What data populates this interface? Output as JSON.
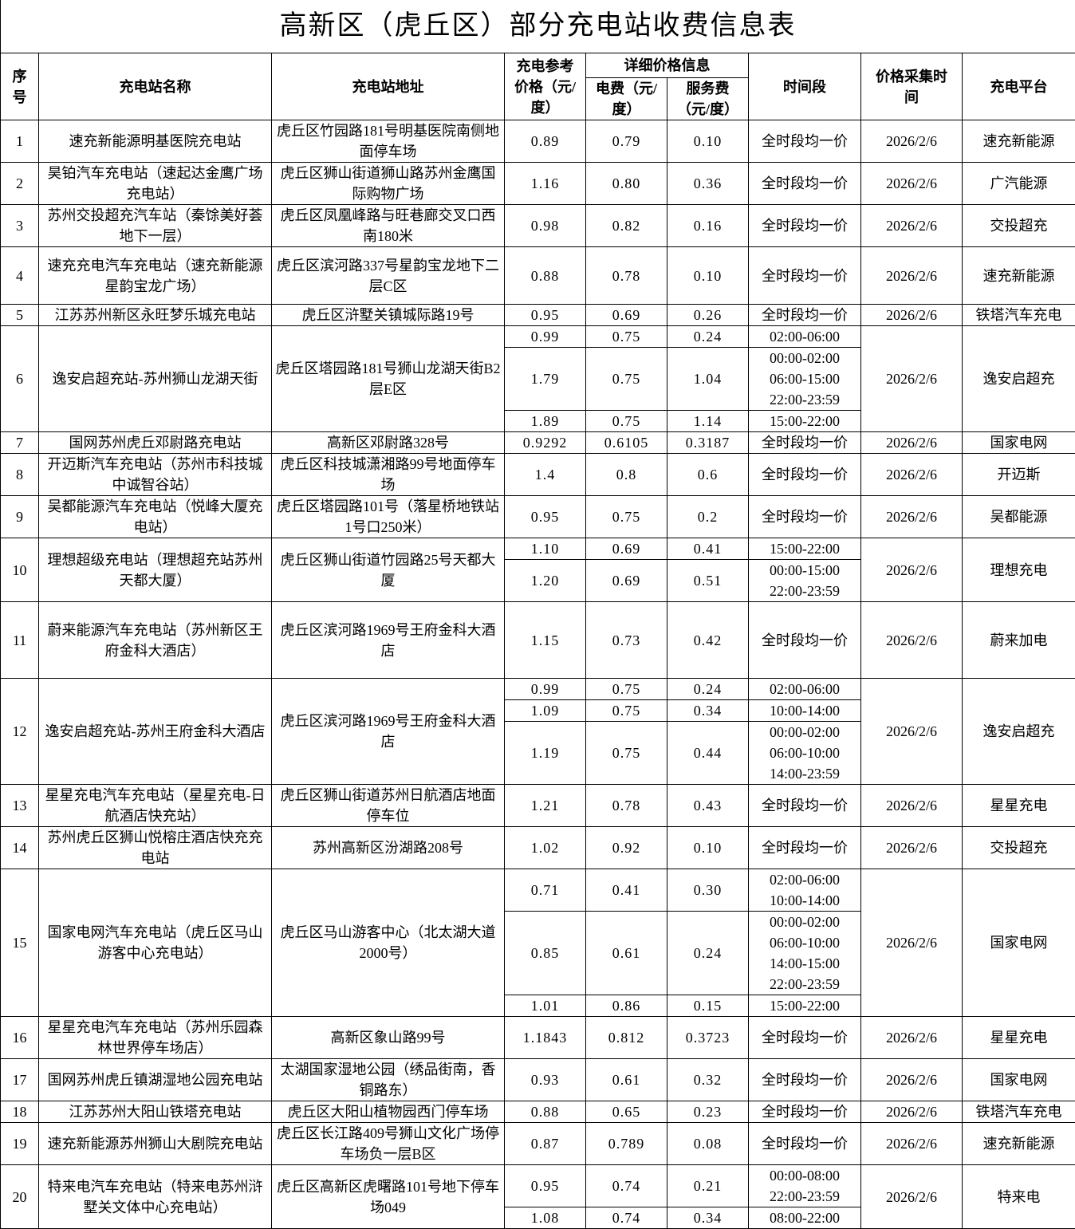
{
  "title": "高新区（虎丘区）部分充电站收费信息表",
  "headers": {
    "seq": "序\n号",
    "name": "充电站名称",
    "address": "充电站地址",
    "ref_price": "充电参考\n价格（元/\n度）",
    "detail": "详细价格信息",
    "electricity": "电费（元/\n度）",
    "service": "服务费\n（元/度）",
    "period": "时间段",
    "collected": "价格采集时\n间",
    "platform": "充电平台"
  },
  "rows": [
    {
      "seq": "1",
      "name": "速充新能源明基医院充电站",
      "address": "虎丘区竹园路181号明基医院南侧地面停车场",
      "date": "2026/2/6",
      "platform": "速充新能源",
      "prices": [
        [
          "0.89",
          "0.79",
          "0.10",
          "全时段均一价"
        ]
      ]
    },
    {
      "seq": "2",
      "name": "昊铂汽车充电站（速起达金鹰广场充电站）",
      "address": "虎丘区狮山街道狮山路苏州金鹰国际购物广场",
      "date": "2026/2/6",
      "platform": "广汽能源",
      "prices": [
        [
          "1.16",
          "0.80",
          "0.36",
          "全时段均一价"
        ]
      ]
    },
    {
      "seq": "3",
      "name": "苏州交投超充汽车站（秦馀美好荟地下一层）",
      "address": "虎丘区凤凰峰路与旺巷廊交叉口西南180米",
      "date": "2026/2/6",
      "platform": "交投超充",
      "prices": [
        [
          "0.98",
          "0.82",
          "0.16",
          "全时段均一价"
        ]
      ]
    },
    {
      "seq": "4",
      "name": "速充充电汽车充电站（速充新能源星韵宝龙广场）",
      "address": "虎丘区滨河路337号星韵宝龙地下二层C区",
      "date": "2026/2/6",
      "platform": "速充新能源",
      "prices": [
        [
          "0.88",
          "0.78",
          "0.10",
          "全时段均一价"
        ]
      ]
    },
    {
      "seq": "5",
      "name": "江苏苏州新区永旺梦乐城充电站",
      "address": "虎丘区浒墅关镇城际路19号",
      "date": "2026/2/6",
      "platform": "铁塔汽车充电",
      "prices": [
        [
          "0.95",
          "0.69",
          "0.26",
          "全时段均一价"
        ]
      ]
    },
    {
      "seq": "6",
      "name": "逸安启超充站-苏州狮山龙湖天街",
      "address": "虎丘区塔园路181号狮山龙湖天街B2层E区",
      "date": "2026/2/6",
      "platform": "逸安启超充",
      "prices": [
        [
          "0.99",
          "0.75",
          "0.24",
          "02:00-06:00"
        ],
        [
          "1.79",
          "0.75",
          "1.04",
          "00:00-02:00\n06:00-15:00\n22:00-23:59"
        ],
        [
          "1.89",
          "0.75",
          "1.14",
          "15:00-22:00"
        ]
      ]
    },
    {
      "seq": "7",
      "name": "国网苏州虎丘邓尉路充电站",
      "address": "高新区邓尉路328号",
      "date": "2026/2/6",
      "platform": "国家电网",
      "prices": [
        [
          "0.9292",
          "0.6105",
          "0.3187",
          "全时段均一价"
        ]
      ]
    },
    {
      "seq": "8",
      "name": "开迈斯汽车充电站（苏州市科技城中诚智谷站）",
      "address": "虎丘区科技城潇湘路99号地面停车场",
      "date": "2026/2/6",
      "platform": "开迈斯",
      "prices": [
        [
          "1.4",
          "0.8",
          "0.6",
          "全时段均一价"
        ]
      ]
    },
    {
      "seq": "9",
      "name": "吴都能源汽车充电站（悦峰大厦充电站）",
      "address": "虎丘区塔园路101号（落星桥地铁站1号口250米）",
      "date": "2026/2/6",
      "platform": "吴都能源",
      "prices": [
        [
          "0.95",
          "0.75",
          "0.2",
          "全时段均一价"
        ]
      ]
    },
    {
      "seq": "10",
      "name": "理想超级充电站（理想超充站苏州天都大厦）",
      "address": "虎丘区狮山街道竹园路25号天都大厦",
      "date": "2026/2/6",
      "platform": "理想充电",
      "prices": [
        [
          "1.10",
          "0.69",
          "0.41",
          "15:00-22:00"
        ],
        [
          "1.20",
          "0.69",
          "0.51",
          "00:00-15:00\n22:00-23:59"
        ]
      ]
    },
    {
      "seq": "11",
      "name": "蔚来能源汽车充电站（苏州新区王府金科大酒店）",
      "address": "虎丘区滨河路1969号王府金科大酒店",
      "date": "2026/2/6",
      "platform": "蔚来加电",
      "prices": [
        [
          "1.15",
          "0.73",
          "0.42",
          "全时段均一价"
        ]
      ]
    },
    {
      "seq": "12",
      "name": "逸安启超充站-苏州王府金科大酒店",
      "address": "虎丘区滨河路1969号王府金科大酒店",
      "date": "2026/2/6",
      "platform": "逸安启超充",
      "prices": [
        [
          "0.99",
          "0.75",
          "0.24",
          "02:00-06:00"
        ],
        [
          "1.09",
          "0.75",
          "0.34",
          "10:00-14:00"
        ],
        [
          "1.19",
          "0.75",
          "0.44",
          "00:00-02:00\n06:00-10:00\n14:00-23:59"
        ]
      ]
    },
    {
      "seq": "13",
      "name": "星星充电汽车充电站（星星充电-日航酒店快充站）",
      "address": "虎丘区狮山街道苏州日航酒店地面停车位",
      "date": "2026/2/6",
      "platform": "星星充电",
      "prices": [
        [
          "1.21",
          "0.78",
          "0.43",
          "全时段均一价"
        ]
      ]
    },
    {
      "seq": "14",
      "name": "苏州虎丘区狮山悦榕庄酒店快充充电站",
      "address": "苏州高新区汾湖路208号",
      "date": "2026/2/6",
      "platform": "交投超充",
      "prices": [
        [
          "1.02",
          "0.92",
          "0.10",
          "全时段均一价"
        ]
      ]
    },
    {
      "seq": "15",
      "name": "国家电网汽车充电站（虎丘区马山游客中心充电站）",
      "address": "虎丘区马山游客中心（北太湖大道2000号）",
      "date": "2026/2/6",
      "platform": "国家电网",
      "prices": [
        [
          "0.71",
          "0.41",
          "0.30",
          "02:00-06:00\n10:00-14:00"
        ],
        [
          "0.85",
          "0.61",
          "0.24",
          "00:00-02:00\n06:00-10:00\n14:00-15:00\n22:00-23:59"
        ],
        [
          "1.01",
          "0.86",
          "0.15",
          "15:00-22:00"
        ]
      ]
    },
    {
      "seq": "16",
      "name": "星星充电汽车充电站（苏州乐园森林世界停车场店）",
      "address": "高新区象山路99号",
      "date": "2026/2/6",
      "platform": "星星充电",
      "prices": [
        [
          "1.1843",
          "0.812",
          "0.3723",
          "全时段均一价"
        ]
      ]
    },
    {
      "seq": "17",
      "name": "国网苏州虎丘镇湖湿地公园充电站",
      "address": "太湖国家湿地公园（绣品街南，香铜路东）",
      "date": "2026/2/6",
      "platform": "国家电网",
      "prices": [
        [
          "0.93",
          "0.61",
          "0.32",
          "全时段均一价"
        ]
      ]
    },
    {
      "seq": "18",
      "name": "江苏苏州大阳山铁塔充电站",
      "address": "虎丘区大阳山植物园西门停车场",
      "date": "2026/2/6",
      "platform": "铁塔汽车充电",
      "prices": [
        [
          "0.88",
          "0.65",
          "0.23",
          "全时段均一价"
        ]
      ]
    },
    {
      "seq": "19",
      "name": "速充新能源苏州狮山大剧院充电站",
      "address": "虎丘区长江路409号狮山文化广场停车场负一层B区",
      "date": "2026/2/6",
      "platform": "速充新能源",
      "prices": [
        [
          "0.87",
          "0.789",
          "0.08",
          "全时段均一价"
        ]
      ]
    },
    {
      "seq": "20",
      "name": "特来电汽车充电站（特来电苏州浒墅关文体中心充电站）",
      "address": "虎丘区高新区虎曙路101号地下停车场049",
      "date": "2026/2/6",
      "platform": "特来电",
      "prices": [
        [
          "0.95",
          "0.74",
          "0.21",
          "00:00-08:00\n22:00-23:59"
        ],
        [
          "1.08",
          "0.74",
          "0.34",
          "08:00-22:00"
        ]
      ]
    }
  ]
}
